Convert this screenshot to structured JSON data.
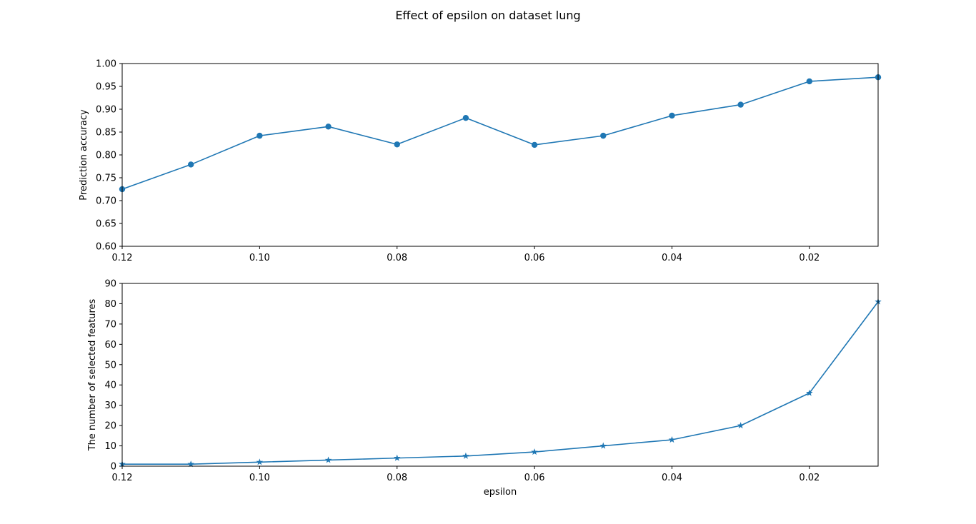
{
  "figure": {
    "title": "Effect of epsilon on dataset lung"
  },
  "chart_data": [
    {
      "type": "line",
      "title": "",
      "xlabel": "",
      "ylabel": "Prediction accuracy",
      "x": [
        0.12,
        0.11,
        0.1,
        0.09,
        0.08,
        0.07,
        0.06,
        0.05,
        0.04,
        0.03,
        0.02,
        0.01
      ],
      "series": [
        {
          "values": [
            0.725,
            0.779,
            0.842,
            0.862,
            0.823,
            0.881,
            0.822,
            0.842,
            0.886,
            0.91,
            0.961,
            0.97
          ],
          "marker": "circle",
          "color": "#1f77b4"
        }
      ],
      "xlim": [
        0.12,
        0.01
      ],
      "ylim": [
        0.6,
        1.0
      ],
      "x_ticks": [
        "0.12",
        "0.10",
        "0.08",
        "0.06",
        "0.04",
        "0.02"
      ],
      "y_ticks": [
        "0.60",
        "0.65",
        "0.70",
        "0.75",
        "0.80",
        "0.85",
        "0.90",
        "0.95",
        "1.00"
      ],
      "grid": false,
      "legend": "none"
    },
    {
      "type": "line",
      "title": "",
      "xlabel": "epsilon",
      "ylabel": "The number of selected features",
      "x": [
        0.12,
        0.11,
        0.1,
        0.09,
        0.08,
        0.07,
        0.06,
        0.05,
        0.04,
        0.03,
        0.02,
        0.01
      ],
      "series": [
        {
          "values": [
            1,
            1,
            2,
            3,
            4,
            5,
            7,
            10,
            13,
            20,
            36,
            81
          ],
          "marker": "star",
          "color": "#1f77b4"
        }
      ],
      "xlim": [
        0.12,
        0.01
      ],
      "ylim": [
        0,
        90
      ],
      "x_ticks": [
        "0.12",
        "0.10",
        "0.08",
        "0.06",
        "0.04",
        "0.02"
      ],
      "y_ticks": [
        "0",
        "10",
        "20",
        "30",
        "40",
        "50",
        "60",
        "70",
        "80",
        "90"
      ],
      "grid": false,
      "legend": "none"
    }
  ]
}
